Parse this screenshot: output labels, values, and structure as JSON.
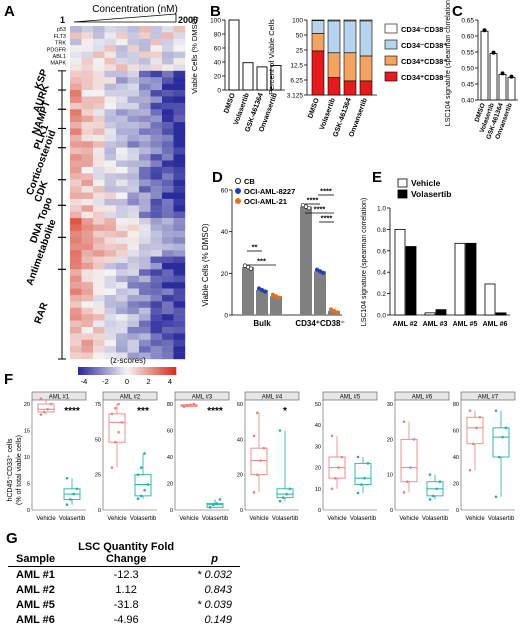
{
  "figure": {
    "panels": {
      "A": "A",
      "B": "B",
      "C": "C",
      "D": "D",
      "E": "E",
      "F": "F",
      "G": "G"
    }
  },
  "panelA": {
    "header": "Concentration (nM)",
    "conc_low": "1",
    "conc_high": "2000",
    "genes": [
      "p53",
      "FLT3",
      "TRK",
      "PDGFR",
      "ABL1",
      "MAPK"
    ],
    "classes": [
      "KSP",
      "AURK",
      "NAMPT",
      "PLK1",
      "Corticosteroid",
      "CDK",
      "DNA Topo",
      "Antimetabolite",
      "RAR"
    ],
    "legend_title": "(z-scores)",
    "legend_ticks": [
      "-4",
      "-2",
      "0",
      "2",
      "4"
    ],
    "colors": {
      "neg": "#2b2c9c",
      "zero": "#f4f4f4",
      "pos": "#d7301f"
    }
  },
  "chart_data": [
    {
      "id": "B-left",
      "type": "bar",
      "ylabel": "Viable Cells (% DMSO)",
      "categories": [
        "DMSO",
        "Volasertib",
        "GSK-461364",
        "Onvansertib"
      ],
      "values": [
        100,
        39,
        33,
        35
      ],
      "ylim": [
        0,
        100
      ],
      "yticks": [
        "0",
        "20",
        "40",
        "60",
        "80",
        "100"
      ]
    },
    {
      "id": "B-right",
      "type": "bar",
      "stacked": true,
      "ylabel": "Percent of Viable Cells",
      "yscale": "log",
      "categories": [
        "DMSO",
        "Volasertib",
        "GSK-461364",
        "Onvansertib"
      ],
      "yticks": [
        "3.125",
        "6.25",
        "12.5",
        "25",
        "50",
        "100"
      ],
      "series": [
        {
          "name": "CD34⁻CD38⁻",
          "color": "#ffffff",
          "values": [
            3,
            4,
            4,
            4
          ]
        },
        {
          "name": "CD34⁻CD38⁺",
          "color": "#b7d4ef",
          "values": [
            43,
            74,
            74,
            77
          ]
        },
        {
          "name": "CD34⁺CD38⁺",
          "color": "#f4a460",
          "values": [
            30,
            15,
            16,
            13
          ]
        },
        {
          "name": "CD34⁺CD38⁻",
          "color": "#e41a1c",
          "values": [
            24,
            7,
            6,
            6
          ]
        }
      ]
    },
    {
      "id": "C",
      "type": "bar",
      "ylabel": "LSC104 signature (spearman correlation)",
      "categories": [
        "DMSO",
        "Volasertib",
        "GSK-461364",
        "Onvansertib"
      ],
      "values": [
        0.615,
        0.545,
        0.48,
        0.47
      ],
      "ylim": [
        0.4,
        0.65
      ],
      "yticks": [
        "0.40",
        "0.45",
        "0.50",
        "0.55",
        "0.60",
        "0.65"
      ]
    },
    {
      "id": "D",
      "type": "bar",
      "ylabel": "Viable Cells (% DMSO)",
      "categories": [
        "Bulk",
        "CD34⁺CD38⁻"
      ],
      "series": [
        {
          "name": "CB",
          "color": "#ffffff",
          "values": [
            23,
            52
          ]
        },
        {
          "name": "OCI-AML-8227",
          "color": "#1f3fbf",
          "values": [
            12,
            21
          ]
        },
        {
          "name": "OCI-AML-21",
          "color": "#e8701e",
          "values": [
            9,
            2
          ]
        }
      ],
      "ylim": [
        0,
        60
      ],
      "yticks": [
        "0",
        "20",
        "40",
        "60"
      ],
      "sig": [
        "**",
        "***",
        "****",
        "****",
        "****",
        "****"
      ]
    },
    {
      "id": "E",
      "type": "bar",
      "ylabel": "LSC104 signature (spearman correlation)",
      "categories": [
        "AML #2",
        "AML #3",
        "AML #5",
        "AML #6"
      ],
      "series": [
        {
          "name": "Vehicle",
          "color": "#ffffff",
          "values": [
            0.8,
            0.02,
            0.67,
            0.29
          ]
        },
        {
          "name": "Volasertib",
          "color": "#000000",
          "values": [
            0.64,
            0.05,
            0.67,
            0.02
          ]
        }
      ],
      "ylim": [
        0,
        1.0
      ],
      "yticks": [
        "0.0",
        "0.2",
        "0.4",
        "0.6",
        "0.8",
        "1.0"
      ]
    },
    {
      "id": "F",
      "type": "box",
      "ylabel": "hCD45⁺CD33⁺ cells (% of total viable cells)",
      "groups": [
        "Vehicle",
        "Volasertib"
      ],
      "panels": [
        {
          "title": "AML #1",
          "ylim": [
            0,
            20
          ],
          "yticks": [
            "0",
            "5",
            "10",
            "15",
            "20"
          ],
          "sig": "****",
          "veh": [
            18,
            19,
            20,
            21,
            18.5
          ],
          "vol": [
            1,
            3,
            4,
            6,
            2
          ]
        },
        {
          "title": "AML #2",
          "ylim": [
            0,
            75
          ],
          "yticks": [
            "0",
            "25",
            "50",
            "75"
          ],
          "sig": "***",
          "veh": [
            30,
            55,
            62,
            68,
            72,
            75,
            48
          ],
          "vol": [
            8,
            10,
            14,
            18,
            25,
            30,
            40
          ]
        },
        {
          "title": "AML #3",
          "ylim": [
            0,
            80
          ],
          "yticks": [
            "0",
            "20",
            "40",
            "60",
            "80"
          ],
          "sig": "****",
          "veh": [
            78,
            80,
            79,
            79.5
          ],
          "vol": [
            2,
            4,
            5,
            8
          ]
        },
        {
          "title": "AML #4",
          "ylim": [
            0,
            60
          ],
          "yticks": [
            "0",
            "20",
            "40",
            "60"
          ],
          "sig": "*",
          "veh": [
            10,
            20,
            28,
            35,
            42,
            55
          ],
          "vol": [
            5,
            7,
            9,
            12,
            45
          ]
        },
        {
          "title": "AML #5",
          "ylim": [
            0,
            50
          ],
          "yticks": [
            "0",
            "10",
            "20",
            "30",
            "40",
            "50"
          ],
          "sig": "",
          "veh": [
            10,
            15,
            20,
            25,
            35
          ],
          "vol": [
            8,
            12,
            15,
            22,
            25
          ]
        },
        {
          "title": "AML #6",
          "ylim": [
            0,
            30
          ],
          "yticks": [
            "0",
            "10",
            "20",
            "30"
          ],
          "sig": "",
          "veh": [
            5,
            8,
            12,
            20,
            25
          ],
          "vol": [
            3,
            4,
            6,
            8,
            10
          ]
        },
        {
          "title": "AML #7",
          "ylim": [
            0,
            80
          ],
          "yticks": [
            "0",
            "20",
            "40",
            "60",
            "80"
          ],
          "sig": "",
          "veh": [
            30,
            50,
            62,
            70,
            75
          ],
          "vol": [
            10,
            40,
            55,
            62,
            75
          ]
        }
      ]
    },
    {
      "id": "G",
      "type": "table",
      "columns": [
        "Sample",
        "LSC Quantity Fold Change",
        "p"
      ],
      "rows": [
        {
          "sample": "AML #1",
          "fc": "-12.3",
          "star": "*",
          "p": "0.032"
        },
        {
          "sample": "AML #2",
          "fc": "1.12",
          "star": "",
          "p": "0.843"
        },
        {
          "sample": "AML #5",
          "fc": "-31.8",
          "star": "*",
          "p": "0.039"
        },
        {
          "sample": "AML #6",
          "fc": "-4.96",
          "star": "",
          "p": "0.149"
        }
      ]
    }
  ]
}
